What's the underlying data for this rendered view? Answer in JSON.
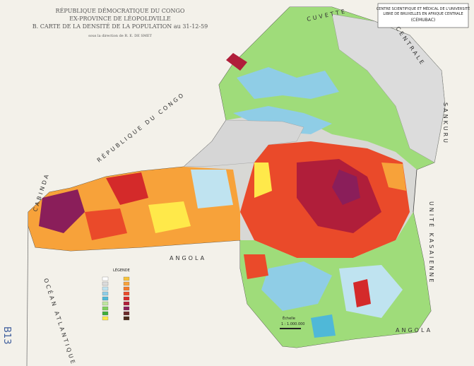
{
  "header": {
    "line1": "RÉPUBLIQUE DÉMOCRATIQUE DU CONGO",
    "line2": "EX-PROVINCE DE LÉOPOLDVILLE",
    "line3": "B. CARTE DE LA DENSITÉ DE LA POPULATION au 31-12-59",
    "credit": "sous la direction de R. E. DE SMET"
  },
  "institution": {
    "line1": "CENTRE SCIENTIFIQUE ET MÉDICAL DE L'UNIVERSITÉ",
    "line2": "LIBRE DE BRUXELLES EN AFRIQUE CENTRALE",
    "line3": "(CEMUBAC)"
  },
  "labels": [
    "CUVETTE",
    "CENTRALE",
    "SANKURU",
    "UNITÉ KASAIENNE",
    "ANGOLA",
    "ANGOLA",
    "RÉPUBLIQUE DU CONGO",
    "CABINDA",
    "OCÉAN ATLANTIQUE"
  ],
  "legend": {
    "title": "LÉGENDE",
    "colors": [
      "#ffffff",
      "#dcdcdc",
      "#bfe3f0",
      "#8fcde6",
      "#4fb8d8",
      "#bfe6a0",
      "#7fcf5a",
      "#3fae3a",
      "#ffe94a",
      "#f6c23a",
      "#f7a23a",
      "#f27a2a",
      "#ea4a2a",
      "#d42a2a",
      "#b01e3a",
      "#8a1e5a",
      "#6a2a2a",
      "#4a2a1a"
    ]
  },
  "scale": {
    "title": "Échelle",
    "ratio": "1 : 1.000.000"
  },
  "sheet_code": "B13"
}
